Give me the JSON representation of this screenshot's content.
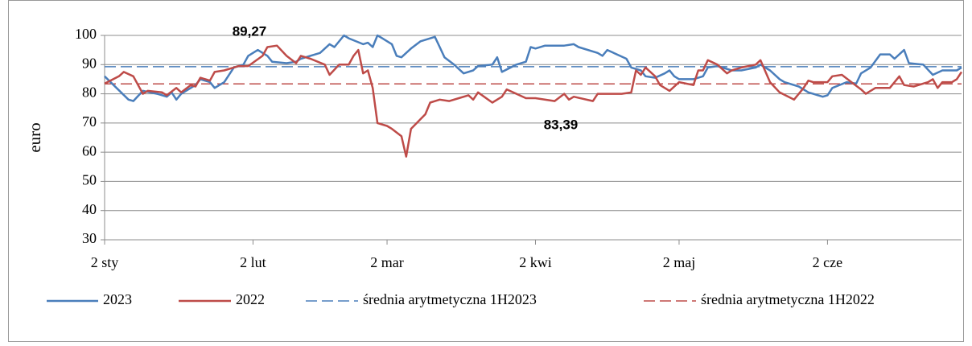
{
  "chart_data": {
    "type": "line",
    "y_label": "euro",
    "xlim": [
      0,
      179
    ],
    "xticks": [
      {
        "value": 0,
        "label": "2 sty"
      },
      {
        "value": 31,
        "label": "2 lut"
      },
      {
        "value": 59,
        "label": "2 mar"
      },
      {
        "value": 90,
        "label": "2 kwi"
      },
      {
        "value": 120,
        "label": "2 maj"
      },
      {
        "value": 151,
        "label": "2 cze"
      }
    ],
    "ylim": [
      30,
      100
    ],
    "yticks": [
      30,
      40,
      50,
      60,
      70,
      80,
      90,
      100
    ],
    "grid": true,
    "legend": "bottom",
    "series": [
      {
        "name": "2023",
        "color": "#4a7ebb",
        "x": [
          0,
          5,
          6,
          8,
          11,
          13,
          14,
          15,
          16,
          19,
          20,
          22,
          23,
          25,
          27,
          29,
          30,
          32,
          34,
          35,
          38,
          40,
          41,
          45,
          47,
          48,
          50,
          51,
          54,
          55,
          56,
          57,
          58,
          60,
          61,
          62,
          64,
          66,
          69,
          70,
          71,
          73,
          75,
          77,
          78,
          81,
          82,
          83,
          86,
          88,
          89,
          90,
          92,
          96,
          98,
          99,
          103,
          104,
          105,
          109,
          110,
          112,
          113,
          115,
          117,
          118,
          119,
          120,
          123,
          125,
          126,
          128,
          131,
          133,
          136,
          137,
          139,
          141,
          142,
          145,
          147,
          148,
          150,
          151,
          152,
          155,
          157,
          158,
          160,
          162,
          164,
          165,
          167,
          168,
          171,
          173,
          175,
          178,
          179
        ],
        "values": [
          86,
          78,
          77.5,
          81,
          80,
          79,
          80.5,
          78,
          80,
          83,
          85,
          84,
          82,
          84,
          89,
          90,
          93,
          95,
          93,
          91,
          90.5,
          91,
          92,
          94,
          97,
          96,
          100,
          99,
          97,
          97.5,
          96,
          100,
          99,
          97,
          93,
          92.5,
          95.5,
          98,
          99.5,
          96,
          92.5,
          90,
          87,
          88,
          89.5,
          90,
          92.5,
          87.5,
          90,
          91,
          96,
          95.5,
          96.5,
          96.5,
          97,
          96,
          94,
          93,
          95,
          92,
          89,
          88,
          86,
          85.5,
          87,
          88,
          86,
          85,
          85,
          86,
          89,
          89.5,
          88,
          88,
          89,
          90,
          88,
          85,
          84,
          82.5,
          80.5,
          80,
          79,
          79.5,
          82,
          84,
          83.5,
          87,
          89,
          93.5,
          93.5,
          92,
          95,
          90.5,
          90,
          86.5,
          88,
          88,
          89
        ]
      },
      {
        "name": "2022",
        "color": "#be4b48",
        "x": [
          0,
          3,
          4,
          6,
          8,
          9,
          12,
          13,
          15,
          16,
          18,
          19,
          20,
          22,
          23,
          25,
          28,
          30,
          33,
          34,
          36,
          38,
          40,
          41,
          43,
          46,
          47,
          49,
          51,
          52,
          53,
          54,
          55,
          56,
          57,
          59,
          60,
          62,
          63,
          64,
          67,
          68,
          70,
          72,
          74,
          76,
          77,
          78,
          81,
          83,
          84,
          88,
          90,
          94,
          96,
          97,
          98,
          102,
          103,
          108,
          110,
          111,
          112,
          113,
          115,
          116,
          118,
          120,
          123,
          124,
          125,
          126,
          128,
          130,
          131,
          133,
          136,
          137,
          139,
          141,
          144,
          146,
          147,
          148,
          151,
          152,
          154,
          156,
          158,
          159,
          161,
          164,
          166,
          167,
          169,
          172,
          173,
          174,
          175,
          177,
          178,
          179
        ],
        "values": [
          83.5,
          86,
          87.5,
          86,
          80,
          81,
          80.5,
          79.5,
          82,
          80.5,
          83,
          82.5,
          85.5,
          84.5,
          87.5,
          88,
          89.5,
          89.5,
          93,
          96,
          96.5,
          93,
          90.5,
          93,
          92,
          90,
          86.5,
          90,
          90,
          93,
          95,
          87,
          88,
          82,
          70,
          69,
          68,
          65.5,
          58.5,
          68,
          73,
          77,
          78,
          77.5,
          78.5,
          79.5,
          78,
          80.5,
          77,
          79,
          81.5,
          78.5,
          78.5,
          77.5,
          80,
          78,
          79,
          77.5,
          80,
          80,
          80.5,
          88,
          86.5,
          89,
          86,
          83,
          81,
          84,
          83,
          88,
          88,
          91.5,
          90,
          87,
          88,
          89,
          90,
          91.5,
          84,
          80.5,
          78,
          82,
          84.5,
          84,
          84,
          86,
          86.5,
          84,
          81.5,
          80,
          82,
          82,
          86,
          83,
          82.5,
          84,
          85,
          82,
          84,
          84,
          85,
          87.5
        ]
      }
    ],
    "hlines": [
      {
        "name": "średnia arytmetyczna 1H2023",
        "color": "#4a7ebb",
        "dashed": true,
        "value": 89.27,
        "value_label": "89,27"
      },
      {
        "name": "średnia arytmetyczna 1H2022",
        "color": "#be4b48",
        "dashed": true,
        "value": 83.39,
        "value_label": "83,39"
      }
    ]
  }
}
